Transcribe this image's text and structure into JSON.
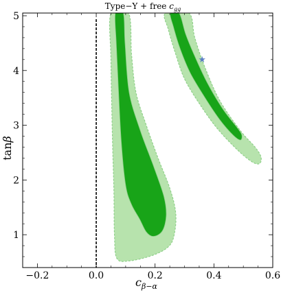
{
  "chart_data": {
    "type": "contour",
    "title": {
      "prefix": "Type−Y + free ",
      "var": "c",
      "sub": "gg"
    },
    "xlabel": {
      "var": "c",
      "sub": "β−α"
    },
    "ylabel": {
      "pre": "tan",
      "var": "β"
    },
    "xlim": [
      -0.25,
      0.6
    ],
    "ylim": [
      0.4,
      5.05
    ],
    "x_ticks": [
      -0.2,
      0.0,
      0.2,
      0.4,
      0.6
    ],
    "x_tick_labels": [
      "−0.2",
      "0.0",
      "0.2",
      "0.4",
      "0.6"
    ],
    "y_ticks": [
      1,
      2,
      3,
      4,
      5
    ],
    "y_tick_labels": [
      "1",
      "2",
      "3",
      "4",
      "5"
    ],
    "colors": {
      "outer_region": "#b7e3ad",
      "inner_region": "#18a418",
      "region_edge": "#8fd08a",
      "reference_line": "#000000",
      "best_fit_marker": "#5a7ec2"
    },
    "reference_line": {
      "x": 0.0,
      "style": "dashed"
    },
    "best_fit_point": {
      "x": 0.36,
      "y": 4.2,
      "marker": "star"
    },
    "regions": [
      {
        "name": "outer-left",
        "level": "outer",
        "points": [
          [
            0.05,
            5.05
          ],
          [
            0.11,
            5.05
          ],
          [
            0.12,
            4.3
          ],
          [
            0.135,
            3.6
          ],
          [
            0.17,
            3.0
          ],
          [
            0.21,
            2.4
          ],
          [
            0.25,
            1.85
          ],
          [
            0.27,
            1.4
          ],
          [
            0.265,
            1.0
          ],
          [
            0.245,
            0.78
          ],
          [
            0.19,
            0.62
          ],
          [
            0.11,
            0.52
          ],
          [
            0.07,
            0.57
          ],
          [
            0.062,
            1.0
          ],
          [
            0.06,
            1.8
          ],
          [
            0.055,
            2.8
          ],
          [
            0.05,
            4.2
          ]
        ]
      },
      {
        "name": "inner-left",
        "level": "inner",
        "points": [
          [
            0.065,
            5.05
          ],
          [
            0.092,
            5.05
          ],
          [
            0.098,
            4.5
          ],
          [
            0.112,
            3.6
          ],
          [
            0.15,
            2.9
          ],
          [
            0.195,
            2.25
          ],
          [
            0.23,
            1.7
          ],
          [
            0.238,
            1.35
          ],
          [
            0.225,
            1.07
          ],
          [
            0.195,
            0.97
          ],
          [
            0.17,
            1.05
          ],
          [
            0.148,
            1.28
          ],
          [
            0.12,
            1.55
          ],
          [
            0.1,
            1.9
          ],
          [
            0.085,
            2.7
          ],
          [
            0.075,
            3.7
          ],
          [
            0.068,
            4.5
          ]
        ]
      },
      {
        "name": "outer-right",
        "level": "outer",
        "points": [
          [
            0.235,
            5.05
          ],
          [
            0.315,
            5.05
          ],
          [
            0.335,
            4.6
          ],
          [
            0.37,
            4.05
          ],
          [
            0.42,
            3.45
          ],
          [
            0.49,
            2.9
          ],
          [
            0.54,
            2.6
          ],
          [
            0.56,
            2.42
          ],
          [
            0.555,
            2.3
          ],
          [
            0.53,
            2.33
          ],
          [
            0.48,
            2.55
          ],
          [
            0.41,
            2.95
          ],
          [
            0.35,
            3.4
          ],
          [
            0.3,
            3.85
          ],
          [
            0.27,
            4.3
          ],
          [
            0.245,
            4.75
          ]
        ]
      },
      {
        "name": "inner-right",
        "level": "inner",
        "points": [
          [
            0.252,
            5.05
          ],
          [
            0.282,
            5.05
          ],
          [
            0.305,
            4.65
          ],
          [
            0.34,
            4.2
          ],
          [
            0.38,
            3.75
          ],
          [
            0.43,
            3.3
          ],
          [
            0.48,
            2.95
          ],
          [
            0.495,
            2.82
          ],
          [
            0.49,
            2.73
          ],
          [
            0.465,
            2.82
          ],
          [
            0.42,
            3.1
          ],
          [
            0.37,
            3.5
          ],
          [
            0.32,
            3.95
          ],
          [
            0.285,
            4.4
          ],
          [
            0.262,
            4.8
          ]
        ]
      }
    ]
  }
}
